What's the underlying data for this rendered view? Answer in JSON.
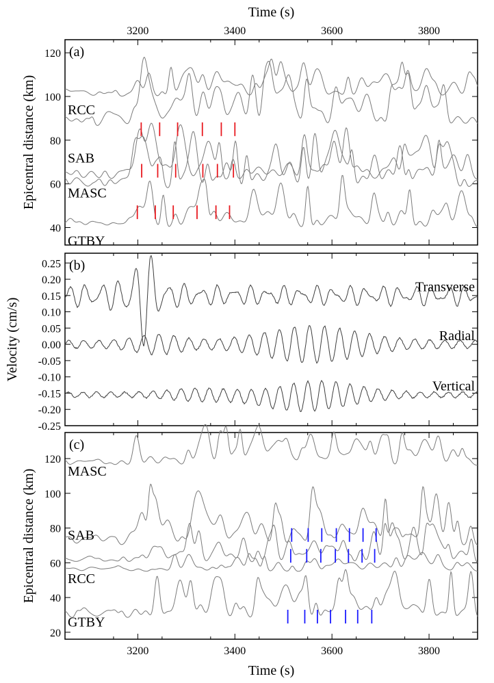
{
  "chart_data": [
    {
      "type": "line",
      "panel_label": "(a)",
      "x_axis_top": {
        "label": "Time (s)",
        "ticks": [
          "3200",
          "3400",
          "3600",
          "3800"
        ]
      },
      "xlim": [
        3050,
        3900
      ],
      "ylabel": "Epicentral distance (km)",
      "ylim": [
        32,
        126
      ],
      "yticks": [
        "40",
        "60",
        "80",
        "100",
        "120"
      ],
      "traces": [
        {
          "name": "",
          "baseline": 100,
          "amp": 14,
          "seed": 11,
          "onset": 3195
        },
        {
          "name": "RCC",
          "baseline": 86,
          "amp": 24,
          "seed": 23,
          "onset": 3190,
          "label_y": 94
        },
        {
          "name": "SAB",
          "baseline": 62,
          "amp": 22,
          "seed": 37,
          "onset": 3185,
          "label_y": 72
        },
        {
          "name": "MASC",
          "baseline": 58,
          "amp": 22,
          "seed": 41,
          "onset": 3185,
          "label_y": 56
        },
        {
          "name": "GTBY",
          "baseline": 40,
          "amp": 18,
          "seed": 53,
          "onset": 3180,
          "label_y": 34
        }
      ],
      "picks": {
        "color": "#e8191f",
        "rows": [
          {
            "y": 85,
            "times": [
              3207,
              3245,
              3282,
              3333,
              3372,
              3400
            ]
          },
          {
            "y": 66,
            "times": [
              3208,
              3241,
              3278,
              3334,
              3364,
              3397
            ]
          },
          {
            "y": 47,
            "times": [
              3199,
              3236,
              3273,
              3322,
              3361,
              3389
            ]
          }
        ]
      }
    },
    {
      "type": "line",
      "panel_label": "(b)",
      "xlim": [
        3050,
        3900
      ],
      "ylabel": "Velocity (cm/s)",
      "ylim": [
        -0.25,
        0.28
      ],
      "yticks": [
        "0.25",
        "0.20",
        "0.15",
        "0.10",
        "0.05",
        "0.00",
        "-0.05",
        "-0.10",
        "-0.15",
        "-0.20",
        "-0.25"
      ],
      "series": [
        {
          "name": "Transverse",
          "offset": 0.15,
          "label_y": 0.178
        },
        {
          "name": "Radial",
          "offset": 0.0,
          "label_y": 0.028
        },
        {
          "name": "Vertical",
          "offset": -0.155,
          "label_y": -0.127
        }
      ]
    },
    {
      "type": "line",
      "panel_label": "(c)",
      "x_axis_bottom": {
        "label": "Time (s)",
        "ticks": [
          "3200",
          "3400",
          "3600",
          "3800"
        ]
      },
      "xlim": [
        3050,
        3900
      ],
      "ylabel": "Epicentral distance (km)",
      "ylim": [
        16,
        135
      ],
      "yticks": [
        "20",
        "40",
        "60",
        "80",
        "100",
        "120"
      ],
      "traces": [
        {
          "name": "MASC",
          "baseline": 116,
          "amp": 18,
          "seed": 61,
          "onset": 3195,
          "label_y": 113
        },
        {
          "name": "SAB",
          "baseline": 70,
          "amp": 26,
          "seed": 67,
          "onset": 3190,
          "label_y": 76
        },
        {
          "name": "",
          "baseline": 60,
          "amp": 20,
          "seed": 71,
          "onset": 3215
        },
        {
          "name": "RCC",
          "baseline": 55,
          "amp": 10,
          "seed": 73,
          "onset": 3250,
          "label_y": 51
        },
        {
          "name": "GTBY",
          "baseline": 28,
          "amp": 24,
          "seed": 79,
          "onset": 3180,
          "label_y": 26
        }
      ],
      "picks": {
        "color": "#1a1aff",
        "rows": [
          {
            "y": 76,
            "times": [
              3517,
              3551,
              3579,
              3609,
              3636,
              3664,
              3691
            ]
          },
          {
            "y": 64,
            "times": [
              3515,
              3548,
              3577,
              3607,
              3634,
              3662,
              3688
            ]
          },
          {
            "y": 29,
            "times": [
              3509,
              3544,
              3570,
              3597,
              3628,
              3653,
              3682
            ]
          }
        ]
      }
    }
  ],
  "colors": {
    "trace": "#7a7a7a",
    "trace_b": "#3c3c3c",
    "axis": "#000000"
  }
}
